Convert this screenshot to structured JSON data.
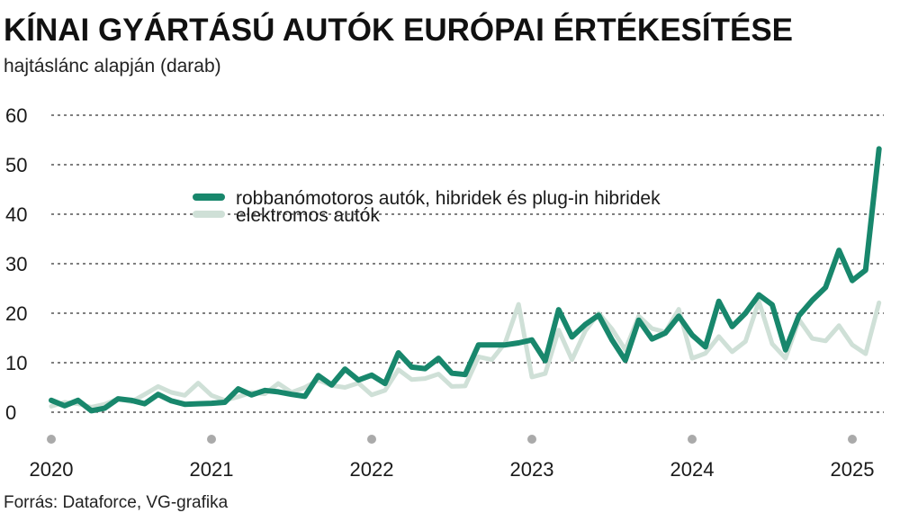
{
  "header": {
    "title": "KÍNAI GYÁRTÁSÚ AUTÓK EURÓPAI ÉRTÉKESÍTÉSE",
    "subtitle": "hajtáslánc alapján (darab)"
  },
  "footer": {
    "source": "Forrás: Dataforce, VG-grafika"
  },
  "chart_data": {
    "type": "line",
    "title": "KÍNAI GYÁRTÁSÚ AUTÓK EURÓPAI ÉRTÉKESÍTÉSE",
    "subtitle": "hajtáslánc alapján (darab)",
    "xlabel": "",
    "ylabel": "",
    "x_start": "2020-01",
    "x_ticks": [
      "2020",
      "2021",
      "2022",
      "2023",
      "2024",
      "2025"
    ],
    "xlim": [
      "2020-01",
      "2025-03"
    ],
    "y_ticks": [
      0,
      10,
      20,
      30,
      40,
      50,
      60
    ],
    "ylim": [
      0,
      60
    ],
    "grid": "horizontal-dotted",
    "legend_position": "top-center",
    "series": [
      {
        "name": "robbanómotoros autók, hibridek és plug-in hibridek",
        "color": "#18876c",
        "values": [
          2.4,
          1.3,
          2.4,
          0.3,
          0.8,
          2.7,
          2.4,
          1.7,
          3.6,
          2.3,
          1.6,
          1.7,
          1.8,
          2.0,
          4.7,
          3.5,
          4.4,
          4.1,
          3.6,
          3.2,
          7.4,
          5.5,
          8.7,
          6.5,
          7.5,
          5.8,
          12.0,
          9.1,
          8.8,
          10.9,
          7.9,
          7.6,
          13.6,
          13.6,
          13.6,
          14.0,
          14.6,
          10.4,
          20.7,
          15.2,
          17.7,
          19.6,
          14.6,
          10.5,
          18.6,
          14.8,
          16.0,
          19.4,
          15.6,
          13.2,
          22.4,
          17.3,
          20.0,
          23.7,
          21.7,
          12.6,
          19.5,
          22.6,
          25.2,
          32.7,
          26.6,
          28.7,
          53.2
        ]
      },
      {
        "name": "elektromos autók",
        "color": "#cfe0d7",
        "values": [
          1.2,
          2.0,
          1.7,
          1.0,
          1.6,
          2.7,
          2.1,
          3.6,
          5.2,
          4.0,
          3.4,
          5.9,
          3.4,
          2.4,
          3.1,
          4.0,
          3.7,
          5.8,
          4.0,
          5.0,
          6.5,
          5.4,
          5.0,
          5.9,
          3.5,
          4.4,
          8.6,
          6.6,
          6.8,
          7.7,
          5.2,
          5.3,
          11.2,
          10.6,
          14.0,
          21.8,
          7.1,
          7.8,
          16.6,
          10.6,
          16.4,
          20.0,
          16.8,
          12.6,
          19.4,
          16.9,
          16.2,
          20.8,
          10.9,
          11.9,
          15.3,
          12.2,
          14.3,
          22.4,
          13.8,
          10.9,
          18.7,
          14.9,
          14.4,
          17.5,
          13.6,
          11.8,
          22.1
        ]
      }
    ],
    "x_tick_markers": {
      "color": "#aaaaaa"
    }
  }
}
